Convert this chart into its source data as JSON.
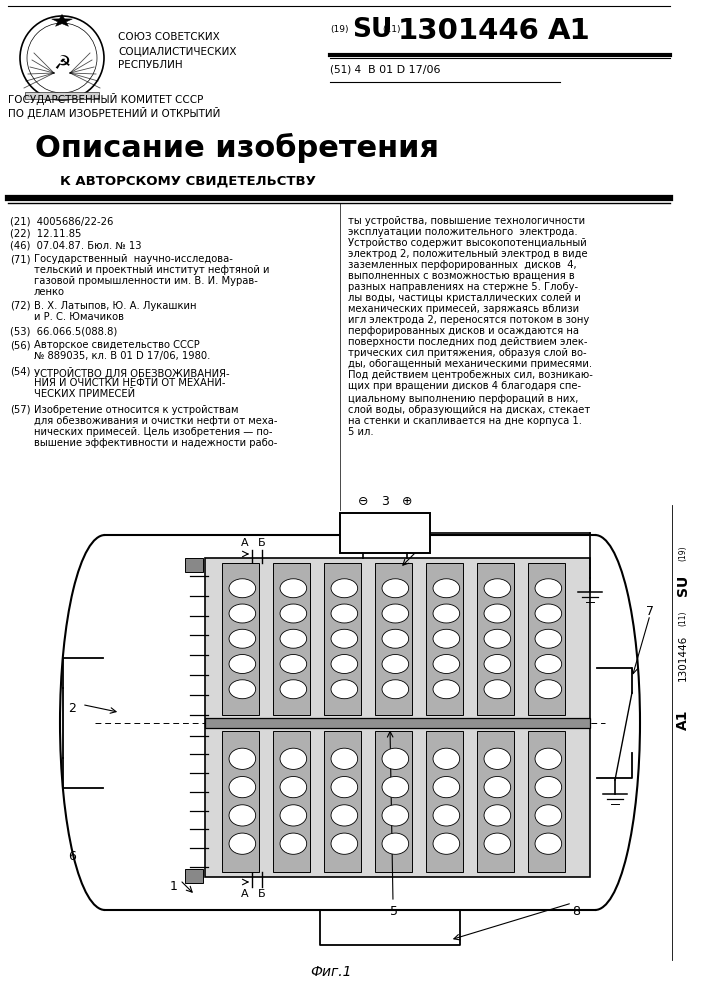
{
  "page_width": 7.07,
  "page_height": 10.0,
  "bg_color": "#ffffff",
  "header_left_line1": "СОЮЗ СОВЕТСКИХ",
  "header_left_line2": "СОЦИАЛИСТИЧЕСКИХ",
  "header_left_line3": "РЕСПУБЛИН",
  "patent_number": "1301446",
  "patent_type": "A1",
  "ipc_code": "B 01 D 17/06",
  "gov_line1": "ГОСУДАРСТВЕННЫЙ КОМИТЕТ СССР",
  "gov_line2": "ПО ДЕЛАМ ИЗОБРЕТЕНИЙ И ОТКРЫТИЙ",
  "title_large": "Описание изобретения",
  "title_sub": "К АВТОРСКОМУ СВИДЕТЕЛЬСТВУ",
  "meta_21": "(21)  4005686/22-26",
  "meta_22": "(22)  12.11.85",
  "meta_46": "(46)  07.04.87. Бюл. № 13",
  "fig_caption": "Фиг.1"
}
